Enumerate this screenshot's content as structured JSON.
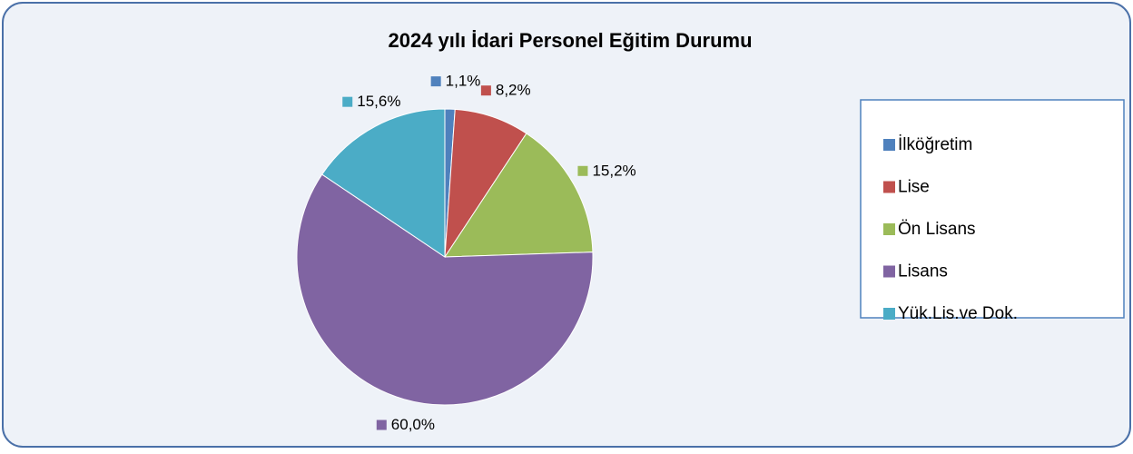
{
  "chart_data": {
    "type": "pie",
    "title": "2024 yılı İdari Personel Eğitim Durumu",
    "categories": [
      "İlköğretim",
      "Lise",
      "Ön Lisans",
      "Lisans",
      "Yük.Lis.ve Dok."
    ],
    "values": [
      1.1,
      8.2,
      15.2,
      60.0,
      15.6
    ],
    "value_labels": [
      "1,1%",
      "8,2%",
      "15,2%",
      "60,0%",
      "15,6%"
    ],
    "colors": [
      "#4f81bd",
      "#c0504d",
      "#9bbb59",
      "#8064a2",
      "#4bacc6"
    ],
    "legend": "right"
  }
}
